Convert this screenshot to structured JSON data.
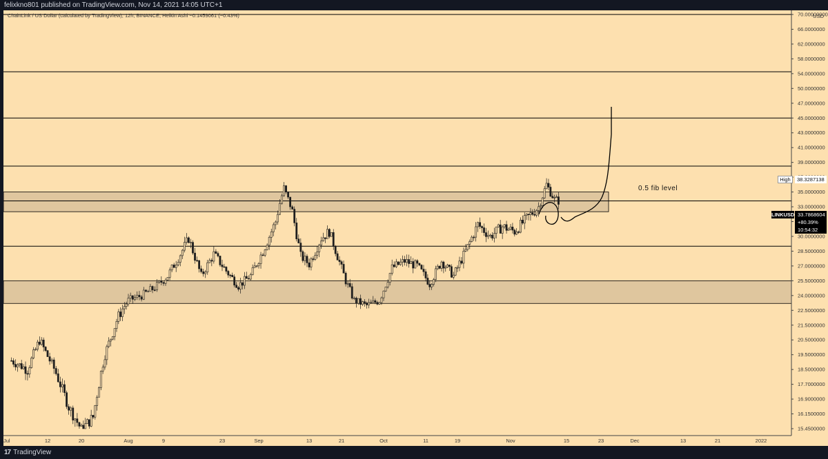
{
  "header": {
    "published_by": "felixkno801 published on TradingView.com, Nov 14, 2021 14:05 UTC+1"
  },
  "footer": {
    "brand": "TradingView",
    "logo_glyph": "17"
  },
  "chart": {
    "legend": "ChainLink / US Dollar (calculated by TradingView), 12h, BINANCE, Heikin Ashi  −0.1459061 (−0.43%)",
    "currency_unit": "USD",
    "annotation": "0.5 fib level",
    "high_label": "High",
    "high_value": "38.3287138",
    "ticker_badge": {
      "symbol": "LINKUSD",
      "price": "33.7868604",
      "change": "+80.39%",
      "countdown": "10:54:32"
    },
    "colors": {
      "background": "#fde0af",
      "zone_fill": "#d4be98",
      "candle": "#1e1e1e",
      "axis_bg": "#fde0af"
    }
  },
  "chart_data": {
    "type": "candlestick",
    "y_ticks": [
      "70.00000000",
      "66.0000000",
      "62.0000000",
      "58.0000000",
      "54.0000000",
      "50.0000000",
      "47.0000000",
      "45.0000000",
      "43.0000000",
      "41.0000000",
      "39.0000000",
      "37.0000000",
      "35.0000000",
      "33.0000000",
      "31.5000000",
      "30.0000000",
      "28.5000000",
      "27.0000000",
      "25.5000000",
      "24.0000000",
      "22.5000000",
      "21.5000000",
      "20.5000000",
      "19.5000000",
      "18.5000000",
      "17.7000000",
      "16.9000000",
      "16.1500000",
      "15.4500000"
    ],
    "x_ticks": [
      "Jul",
      "12",
      "20",
      "Aug",
      "9",
      "23",
      "Sep",
      "13",
      "21",
      "Oct",
      "11",
      "19",
      "Nov",
      "15",
      "23",
      "Dec",
      "13",
      "21",
      "2022"
    ],
    "horizontal_levels": [
      70.0,
      54.5,
      45.0,
      38.5,
      29.0
    ],
    "zones": [
      {
        "top": 35.0,
        "bottom": 32.5
      },
      {
        "top": 25.5,
        "bottom": 23.2
      }
    ],
    "price_line": 33.79,
    "price_path": [
      [
        "Jul 3",
        19.1
      ],
      [
        "Jul 7",
        18.5
      ],
      [
        "Jul 10",
        20.5
      ],
      [
        "Jul 14",
        18.3
      ],
      [
        "Jul 17",
        16.5
      ],
      [
        "Jul 20",
        15.4
      ],
      [
        "Jul 23",
        16.0
      ],
      [
        "Jul 26",
        19.5
      ],
      [
        "Jul 29",
        21.8
      ],
      [
        "Aug 1",
        23.5
      ],
      [
        "Aug 4",
        24.0
      ],
      [
        "Aug 7",
        24.8
      ],
      [
        "Aug 10",
        26.0
      ],
      [
        "Aug 13",
        28.2
      ],
      [
        "Aug 15",
        29.8
      ],
      [
        "Aug 18",
        26.0
      ],
      [
        "Aug 21",
        28.2
      ],
      [
        "Aug 24",
        26.5
      ],
      [
        "Aug 27",
        25.0
      ],
      [
        "Aug 30",
        26.0
      ],
      [
        "Sep 2",
        28.5
      ],
      [
        "Sep 5",
        31.5
      ],
      [
        "Sep 7",
        35.5
      ],
      [
        "Sep 9",
        32.5
      ],
      [
        "Sep 11",
        28.0
      ],
      [
        "Sep 13",
        27.2
      ],
      [
        "Sep 16",
        29.8
      ],
      [
        "Sep 18",
        30.5
      ],
      [
        "Sep 20",
        28.0
      ],
      [
        "Sep 22",
        25.5
      ],
      [
        "Sep 24",
        23.5
      ],
      [
        "Sep 27",
        23.0
      ],
      [
        "Sep 30",
        23.5
      ],
      [
        "Oct 3",
        26.8
      ],
      [
        "Oct 6",
        27.5
      ],
      [
        "Oct 9",
        27.0
      ],
      [
        "Oct 12",
        25.2
      ],
      [
        "Oct 15",
        27.5
      ],
      [
        "Oct 18",
        26.0
      ],
      [
        "Oct 21",
        28.5
      ],
      [
        "Oct 24",
        31.2
      ],
      [
        "Oct 27",
        30.0
      ],
      [
        "Oct 30",
        31.0
      ],
      [
        "Nov 2",
        30.5
      ],
      [
        "Nov 5",
        31.8
      ],
      [
        "Nov 8",
        33.0
      ],
      [
        "Nov 10",
        36.0
      ],
      [
        "Nov 12",
        34.0
      ],
      [
        "Nov 13",
        33.8
      ]
    ]
  }
}
